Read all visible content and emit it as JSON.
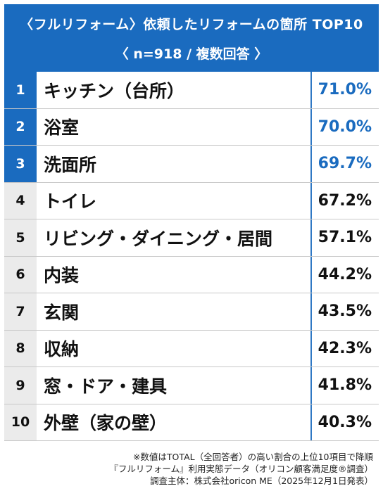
{
  "header": {
    "title": "〈フルリフォーム〉依頼したリフォームの箇所 TOP10",
    "subtitle": "〈 n=918 / 複数回答 〉"
  },
  "chart_data": {
    "type": "table",
    "title": "〈フルリフォーム〉依頼したリフォームの箇所 TOP10",
    "subtitle": "〈 n=918 / 複数回答 〉",
    "rows": [
      {
        "rank": "1",
        "label": "キッチン（台所）",
        "value": "71.0%",
        "percent": 71.0
      },
      {
        "rank": "2",
        "label": "浴室",
        "value": "70.0%",
        "percent": 70.0
      },
      {
        "rank": "3",
        "label": "洗面所",
        "value": "69.7%",
        "percent": 69.7
      },
      {
        "rank": "4",
        "label": "トイレ",
        "value": "67.2%",
        "percent": 67.2
      },
      {
        "rank": "5",
        "label": "リビング・ダイニング・居間",
        "value": "57.1%",
        "percent": 57.1
      },
      {
        "rank": "6",
        "label": "内装",
        "value": "44.2%",
        "percent": 44.2
      },
      {
        "rank": "7",
        "label": "玄関",
        "value": "43.5%",
        "percent": 43.5
      },
      {
        "rank": "8",
        "label": "収納",
        "value": "42.3%",
        "percent": 42.3
      },
      {
        "rank": "9",
        "label": "窓・ドア・建具",
        "value": "41.8%",
        "percent": 41.8
      },
      {
        "rank": "10",
        "label": "外壁（家の壁）",
        "value": "40.3%",
        "percent": 40.3
      }
    ],
    "highlight_top": 3,
    "colors": {
      "accent": "#1a6bbf",
      "rank_bg_rest": "#ebebeb"
    }
  },
  "notes": [
    "※数値はTOTAL（全回答者）の高い割合の上位10項目で降順",
    "『フルリフォーム』利用実態データ（オリコン顧客満足度®調査）",
    "調査主体：株式会社oricon ME（2025年12月1日発表）"
  ]
}
